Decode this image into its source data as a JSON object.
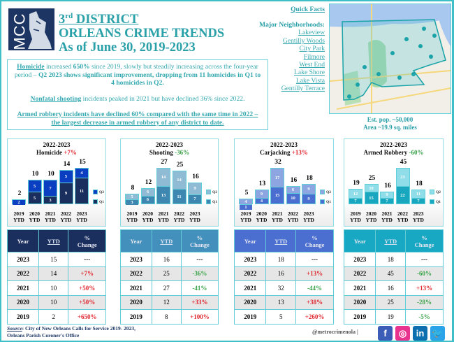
{
  "header": {
    "logo_text": "MCC",
    "title_line1_prefix": "3",
    "title_line1_sup": "rd",
    "title_line1": " DISTRICT",
    "title_line2": "ORLEANS CRIME TRENDS",
    "title_line3": "As of June 30, 2019-2023"
  },
  "summary": {
    "p1_lead": "Homicide",
    "p1_a": " increased ",
    "p1_b": "650%",
    "p1_c": " since 2019, slowly but steadily increasing across the four-year period – ",
    "p1_d": "Q2 2023 shows significant improvement, dropping from 11 homicides in Q1 to 4 homicides in Q2.",
    "p2_lead": "Nonfatal shooting",
    "p2_a": " incidents peaked in 2021 but have declined 36% since 2022.",
    "p3": "Armed robbery incidents have declined 60% compared with the same time in 2022 – the largest decrease in armed robbery of any district to date."
  },
  "quick_facts": {
    "heading": "Quick Facts",
    "neighborhoods_label": "Major Neighborhoods:",
    "neighborhoods": [
      "Lakeview",
      "Gentilly Woods",
      "City Park",
      "Filmore",
      "West End",
      "Lake Shore",
      "Lake Vista",
      "Gentilly Terrace"
    ],
    "population": "Est. pop. ~50,000",
    "area": "Area ~19.9 sq. miles"
  },
  "chart_data": [
    {
      "type": "bar",
      "stacked": true,
      "title": "2022-2023",
      "subtitle": "Homicide",
      "change": "+7%",
      "change_color": "#e0262e",
      "categories": [
        "2019 YTD",
        "2020 YTD",
        "2021 YTD",
        "2022 YTD",
        "2023 YTD"
      ],
      "totals": [
        2,
        10,
        10,
        14,
        15
      ],
      "series": [
        {
          "name": "Q1",
          "values": [
            0,
            5,
            3,
            9,
            11
          ],
          "color": "#1b2f5e"
        },
        {
          "name": "Q2",
          "values": [
            2,
            5,
            7,
            5,
            4
          ],
          "color": "#0b3fc2"
        }
      ]
    },
    {
      "type": "bar",
      "stacked": true,
      "title": "2022-2023",
      "subtitle": "Shooting",
      "change": "-36%",
      "change_color": "#3aa24a",
      "categories": [
        "2019 YTD",
        "2020 YTD",
        "2021 YTD",
        "2022 YTD",
        "2023 YTD"
      ],
      "totals": [
        8,
        12,
        27,
        25,
        16
      ],
      "series": [
        {
          "name": "Q1",
          "values": [
            3,
            6,
            13,
            11,
            7
          ],
          "color": "#3e87b1"
        },
        {
          "name": "Q2",
          "values": [
            5,
            6,
            14,
            14,
            9
          ],
          "color": "#90bbd4"
        }
      ]
    },
    {
      "type": "bar",
      "stacked": true,
      "title": "2022-2023",
      "subtitle": "Carjacking",
      "change": "+13%",
      "change_color": "#e0262e",
      "categories": [
        "2019 YTD",
        "2020 YTD",
        "2021 YTD",
        "2022 YTD",
        "2023 YTD"
      ],
      "totals": [
        5,
        13,
        32,
        16,
        18
      ],
      "series": [
        {
          "name": "Q1",
          "values": [
            1,
            4,
            15,
            10,
            9
          ],
          "color": "#4a6fd0"
        },
        {
          "name": "Q2",
          "values": [
            4,
            9,
            17,
            6,
            9
          ],
          "color": "#8da5e1"
        }
      ]
    },
    {
      "type": "bar",
      "stacked": true,
      "title": "2022-2023",
      "subtitle": "Armed Robbery",
      "change": "-60%",
      "change_color": "#3aa24a",
      "categories": [
        "2019 YTD",
        "2020 YTD",
        "2021 YTD",
        "2022 YTD",
        "2023 YTD"
      ],
      "totals": [
        19,
        25,
        16,
        45,
        18
      ],
      "series": [
        {
          "name": "Q1",
          "values": [
            7,
            15,
            7,
            22,
            7
          ],
          "color": "#19a7bf"
        },
        {
          "name": "Q2",
          "values": [
            12,
            10,
            9,
            23,
            11
          ],
          "color": "#8fdde9"
        }
      ]
    }
  ],
  "tables": [
    {
      "header_color": "#1b2f5e",
      "headers": [
        "Year",
        "YTD",
        "%",
        "Change"
      ],
      "rows": [
        [
          "2023",
          "15",
          "---"
        ],
        [
          "2022",
          "14",
          "+7%"
        ],
        [
          "2021",
          "10",
          "+50%"
        ],
        [
          "2020",
          "10",
          "+50%"
        ],
        [
          "2019",
          "2",
          "+650%"
        ]
      ]
    },
    {
      "header_color": "#4290bb",
      "headers": [
        "Year",
        "YTD",
        "%",
        "Change"
      ],
      "rows": [
        [
          "2023",
          "16",
          "---"
        ],
        [
          "2022",
          "25",
          "-36%"
        ],
        [
          "2021",
          "27",
          "-41%"
        ],
        [
          "2020",
          "12",
          "+33%"
        ],
        [
          "2019",
          "8",
          "+100%"
        ]
      ]
    },
    {
      "header_color": "#4a6fd0",
      "headers": [
        "Year",
        "YTD",
        "%",
        "Change"
      ],
      "rows": [
        [
          "2023",
          "18",
          "---"
        ],
        [
          "2022",
          "16",
          "+13%"
        ],
        [
          "2021",
          "32",
          "-44%"
        ],
        [
          "2020",
          "13",
          "+38%"
        ],
        [
          "2019",
          "5",
          "+260%"
        ]
      ]
    },
    {
      "header_color": "#19a8c4",
      "headers": [
        "Year",
        "YTD",
        "%",
        "Change"
      ],
      "rows": [
        [
          "2023",
          "18",
          "---"
        ],
        [
          "2022",
          "45",
          "-60%"
        ],
        [
          "2021",
          "16",
          "+13%"
        ],
        [
          "2020",
          "25",
          "-28%"
        ],
        [
          "2019",
          "19",
          "-5%"
        ]
      ]
    }
  ],
  "footer": {
    "source_label": "Source",
    "source_text": ": City of New Orleans Calls for Service 2019- 2023,",
    "source_line2": "Orleans Parish Coroner's Office",
    "handle": "@metrocrimenola  |",
    "social": [
      {
        "name": "facebook",
        "glyph": "f",
        "color": "#3b5db8"
      },
      {
        "name": "instagram",
        "glyph": "◎",
        "color": "#e8348f"
      },
      {
        "name": "linkedin",
        "glyph": "in",
        "color": "#0b6fb0"
      },
      {
        "name": "twitter",
        "glyph": "🐦",
        "color": "#2aa3e8"
      }
    ]
  }
}
